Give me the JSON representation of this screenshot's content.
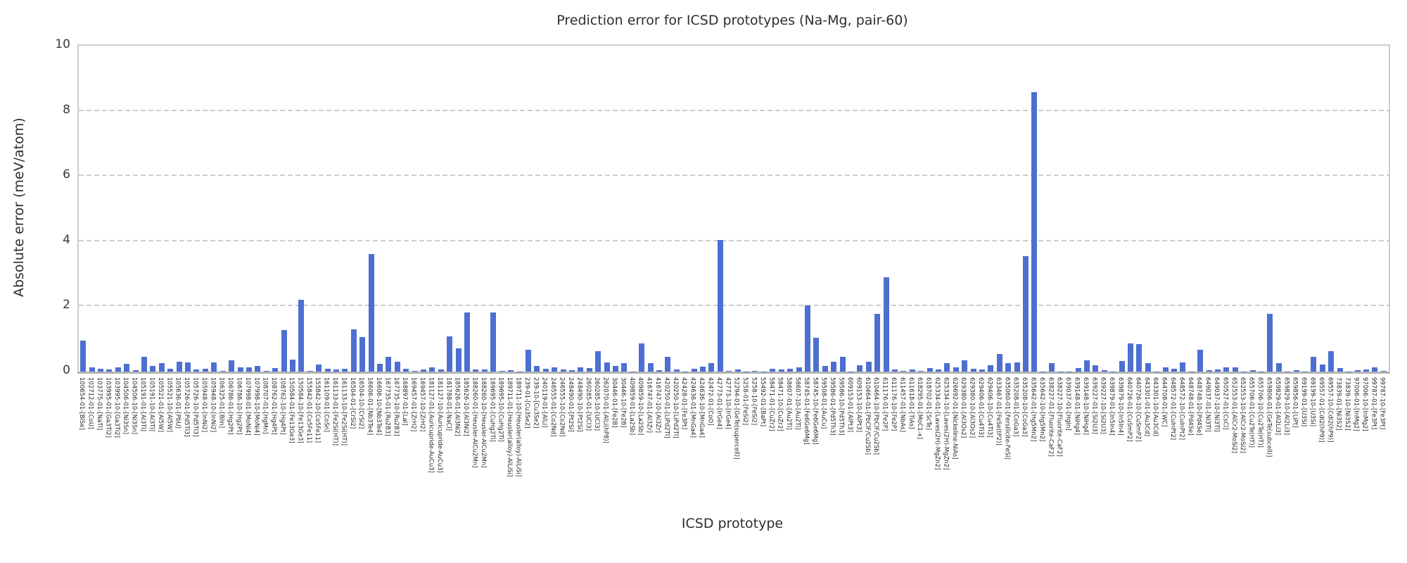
{
  "chart_data": {
    "type": "bar",
    "title": "Prediction error for ICSD prototypes (Na-Mg, pair-60)",
    "xlabel": "ICSD prototype",
    "ylabel": "Absolute error (meV/atom)",
    "ylim": [
      0,
      10
    ],
    "y_ticks": [
      0,
      2,
      4,
      6,
      8,
      10
    ],
    "y_gridlines": [
      2,
      4,
      6,
      8
    ],
    "grid_style": "dashed horizontal",
    "legend": "none",
    "bar_color": "#4D6FD1",
    "grid_color": "#cdcdcd",
    "categories": [
      "100654-01-[BiSe]",
      "102712-01-[CoU]",
      "103775-01-[NaTl]",
      "103995-01-[Ga3Ti2]",
      "103995-10-[Ga3Ti2]",
      "104506-01-[Ni3Sn]",
      "104506-10-[Ni3Sn]",
      "105191-01-[Al3Ti]",
      "105191-10-[Al3Ti]",
      "105521-01-[Al5W]",
      "105521-10-[Al5W]",
      "105636-01-[PbU]",
      "105726-01-[Pd5Ti3]",
      "105726-10-[Pd5Ti3]",
      "105948-01-[InNi2]",
      "105948-10-[InNi2]",
      "106325-01-[BiIn]",
      "106786-01-[Hg2Pt]",
      "106786-10-[Hg2Pt]",
      "107998-01-[MoNi4]",
      "107998-10-[MoNi4]",
      "108707-01-[HgMn]",
      "108762-01-[Hg4Pt]",
      "108762-10-[Hg4Pt]",
      "150584-01-[Fe13Ge3]",
      "150584-10-[Fe13Ge3]",
      "155842-01-[Co5Fe11]",
      "155842-10-[Co5Fe11]",
      "161109-01-[CoSn]",
      "161133-01-[Fe2Si(HT)]",
      "161133-10-[Fe2Si(HT)]",
      "16504-01-[CrSi2]",
      "16504-10-[CrSi2]",
      "16606-01-[Nb3Te4]",
      "16606-10-[Nb3Te4]",
      "167735-01-[Ru2B3]",
      "167735-10-[Ru2B3]",
      "168897-01-[LaI]",
      "169457-01-[ZrH2]",
      "169457-10-[ZrH2]",
      "181127-01-[Auricupride-AuCu3]",
      "181127-10-[Auricupride-AuCu3]",
      "181788-01-[NaCl]",
      "185626-01-[Al3Ni2]",
      "185626-10-[Al3Ni2]",
      "188260-01-[Heusler-AlCu2Mn]",
      "188260-10-[Heusler-AlCu2Mn]",
      "189695-01-[CuHg2Ti]",
      "189695-10-[CuHg2Ti]",
      "189711-01-[Heusler(alloy)-AlLiSi]",
      "189711-10-[Heusler(alloy)-AlLiSi]",
      "239-01-[Cu3Se2]",
      "239-10-[Cu3Se2]",
      "240119-01-[AlLi]",
      "246555-01-[Co2Nd]",
      "246555-10-[Co2Nd]",
      "248490-01-[Pt2Si]",
      "248490-10-[Pt2Si]",
      "260285-01-[UCl3]",
      "260285-10-[UCl3]",
      "262070-01-[AlLi(hP8)]",
      "30446-01-[Fe2B]",
      "30446-10-[Fe2B]",
      "409859-01-[La2Sb]",
      "409859-10-[La2Sb]",
      "416747-01-[Al3Zr]",
      "416747-10-[Al3Zr]",
      "420250-01-[LiPd2Tl]",
      "420250-10-[LiPd2Tl]",
      "42428-01-[Fe3Pt]",
      "424636-01-[MnGa4]",
      "424636-10-[MnGa4]",
      "42472-01-[CoO]",
      "42773-01-[IrGe4]",
      "42773-10-[IrGe4]",
      "52294-01-[GeTe(supercell)]",
      "5258-01-[FeSi2]",
      "5258-10-[FeSi2]",
      "55492-01-[BaPt]",
      "58471-01-[CuZr2]",
      "58471-10-[CuZr2]",
      "58607-01-[Au2Ti]",
      "58607-10-[Au2Ti]",
      "58745-01-[Fe6Ge6Mg]",
      "58745-10-[Fe6Ge6Mg]",
      "59508-01-[AuCu]",
      "59586-01-[Pd5Th3]",
      "59586-10-[Pd5Th3]",
      "609153-01-[AlPt3]",
      "609153-10-[AlPt3]",
      "610464-01-[PbClF/Cu2Sb]",
      "610464-10-[PbClF/Cu2Sb]",
      "611176-01-[Fe2P]",
      "611176-10-[Fe2P]",
      "611457-01-[NbAs]",
      "611618-01-[TiAs]",
      "618295-01-[MoC1-x]",
      "618702-01-[ScTe]",
      "625334-01-[Laves(2H)-MgZn2]",
      "625334-10-[Laves(2H)-MgZn2]",
      "626692-01-[Nickeline-NiAs]",
      "629380-01-[Al3Os2]",
      "629380-10-[Al3Os2]",
      "629406-01-[Cu4Ti3]",
      "629406-10-[Cu4Ti3]",
      "633467-01-[FeSe(tP2)]",
      "635060-01-[Fersilicite-FeSi]",
      "635208-01-[CoGa3]",
      "635208-10-[CoGa3]",
      "635642-01-[Hg5Mn2]",
      "635642-10-[Hg5Mn2]",
      "638227-01-[Fluorite-CaF2]",
      "638227-10-[Fluorite-CaF2]",
      "639037-01-[HgIn]",
      "639148-01-[NiHg4]",
      "639148-10-[NiHg4]",
      "639227-01-[Si2U3]",
      "639227-10-[Si2U3]",
      "639879-01-[In5In4]",
      "639879-10-[In5In4]",
      "640726-01-[CuSmP2]",
      "640726-10-[CuSmP2]",
      "643301-01-[Au3Cd]",
      "643301-10-[Au3Cd]",
      "644708-01-[WC]",
      "648572-01-[CuInPt2]",
      "648572-10-[CuInPt2]",
      "648748-01-[Pd4Se]",
      "648748-10-[Pd4Se]",
      "649037-01-[Ni3Tl]",
      "649037-10-[Ni3Tl]",
      "650527-01-[CsCl]",
      "652553-01-[AlCr2-MoSi2]",
      "652553-10-[AlCr2-MoSi2]",
      "655706-01-[Cu2Te(HT)]",
      "655706-10-[Cu2Te(HT)]",
      "659806-01-[GeTe(subcell)]",
      "659829-01-[Al2Li3]",
      "659829-10-[Al2Li3]",
      "659856-01-[LiPt]",
      "69199-01-[U3Si]",
      "69199-10-[U3Si]",
      "69557-01-[CdI2(hP9)]",
      "69557-10-[CdI2(hP9)]",
      "73839-01-[Ni3S2]",
      "73839-10-[Ni3S2]",
      "97006-01-[InMg2]",
      "97006-10-[InMg2]",
      "99787-01-[Fe3Pt]",
      "99787-10-[Fe3Pt]"
    ],
    "values": [
      0.95,
      0.12,
      0.09,
      0.07,
      0.14,
      0.23,
      0.04,
      0.46,
      0.18,
      0.27,
      0.09,
      0.3,
      0.29,
      0.07,
      0.09,
      0.29,
      0.02,
      0.34,
      0.13,
      0.14,
      0.18,
      0.02,
      0.11,
      1.28,
      0.36,
      2.21,
      0.02,
      0.21,
      0.09,
      0.06,
      0.09,
      1.3,
      1.05,
      3.61,
      0.23,
      0.46,
      0.3,
      0.09,
      0.02,
      0.07,
      0.13,
      0.06,
      1.07,
      0.71,
      1.82,
      0.06,
      0.06,
      1.82,
      0.02,
      0.05,
      0.01,
      0.68,
      0.18,
      0.09,
      0.13,
      0.07,
      0.04,
      0.13,
      0.11,
      0.63,
      0.28,
      0.18,
      0.27,
      0.01,
      0.87,
      0.25,
      0.04,
      0.46,
      0.06,
      0.01,
      0.09,
      0.16,
      0.27,
      4.03,
      0.02,
      0.07,
      0.01,
      0.02,
      0.01,
      0.09,
      0.07,
      0.09,
      0.13,
      2.04,
      1.03,
      0.18,
      0.3,
      0.46,
      0.01,
      0.2,
      0.3,
      1.77,
      2.9,
      0.06,
      0.02,
      0.07,
      0.02,
      0.11,
      0.06,
      0.25,
      0.13,
      0.34,
      0.09,
      0.07,
      0.2,
      0.55,
      0.26,
      0.29,
      3.55,
      8.57,
      0.01,
      0.26,
      0.01,
      0.01,
      0.1,
      0.35,
      0.2,
      0.04,
      0.01,
      0.32,
      0.86,
      0.85,
      0.25,
      0.01,
      0.13,
      0.09,
      0.28,
      0.01,
      0.68,
      0.04,
      0.06,
      0.13,
      0.13,
      0.01,
      0.04,
      0.01,
      1.78,
      0.25,
      0.01,
      0.04,
      0.01,
      0.46,
      0.21,
      0.63,
      0.11,
      0.01,
      0.04,
      0.07,
      0.14,
      0.02
    ]
  }
}
